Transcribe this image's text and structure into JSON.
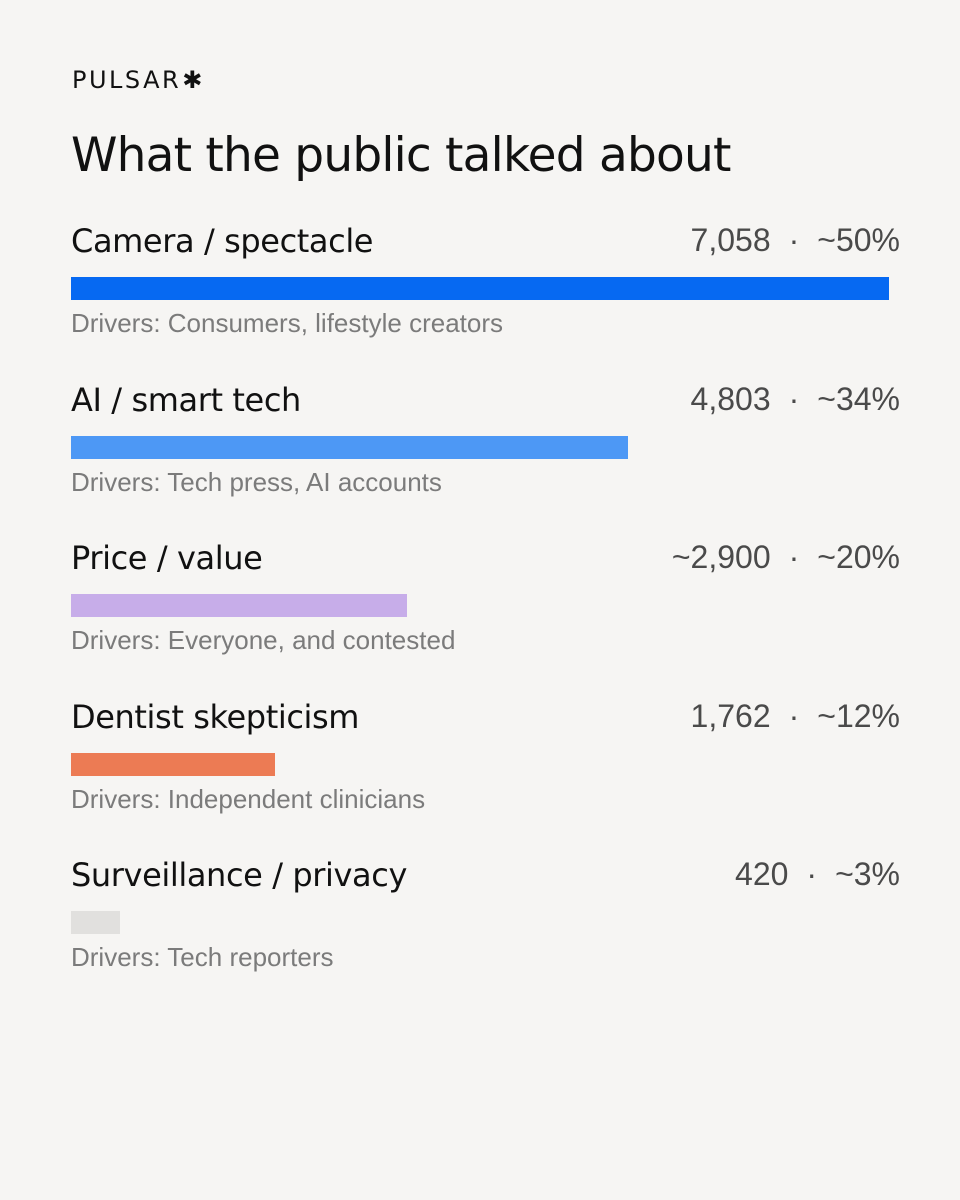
{
  "brand": {
    "name": "PULSAR",
    "mark": "✱"
  },
  "chart_data": {
    "type": "bar",
    "title": "What the public talked about",
    "categories": [
      "Camera / spectacle",
      "AI / smart tech",
      "Price / value",
      "Dentist skepticism",
      "Surveillance / privacy"
    ],
    "values": [
      7058,
      4803,
      2900,
      1762,
      420
    ],
    "rows": [
      {
        "label": "Camera / spectacle",
        "count": "7,058",
        "share": "~50%",
        "value": 7058,
        "drivers": "Drivers: Consumers, lifestyle creators",
        "color": "#0669f2"
      },
      {
        "label": "AI / smart tech",
        "count": "4,803",
        "share": "~34%",
        "value": 4803,
        "drivers": "Drivers: Tech press, AI accounts",
        "color": "#4d98f5"
      },
      {
        "label": "Price / value",
        "count": "~2,900",
        "share": "~20%",
        "value": 2900,
        "drivers": "Drivers: Everyone, and contested",
        "color": "#c7ade9"
      },
      {
        "label": "Dentist skepticism",
        "count": "1,762",
        "share": "~12%",
        "value": 1762,
        "drivers": "Drivers: Independent clinicians",
        "color": "#ec7b54"
      },
      {
        "label": "Surveillance / privacy",
        "count": "420",
        "share": "~3%",
        "value": 420,
        "drivers": "Drivers: Tech reporters",
        "color": "#e1e0de"
      }
    ],
    "separator": "·",
    "xlim": [
      0,
      7058
    ],
    "grid": false,
    "legend": "none"
  }
}
